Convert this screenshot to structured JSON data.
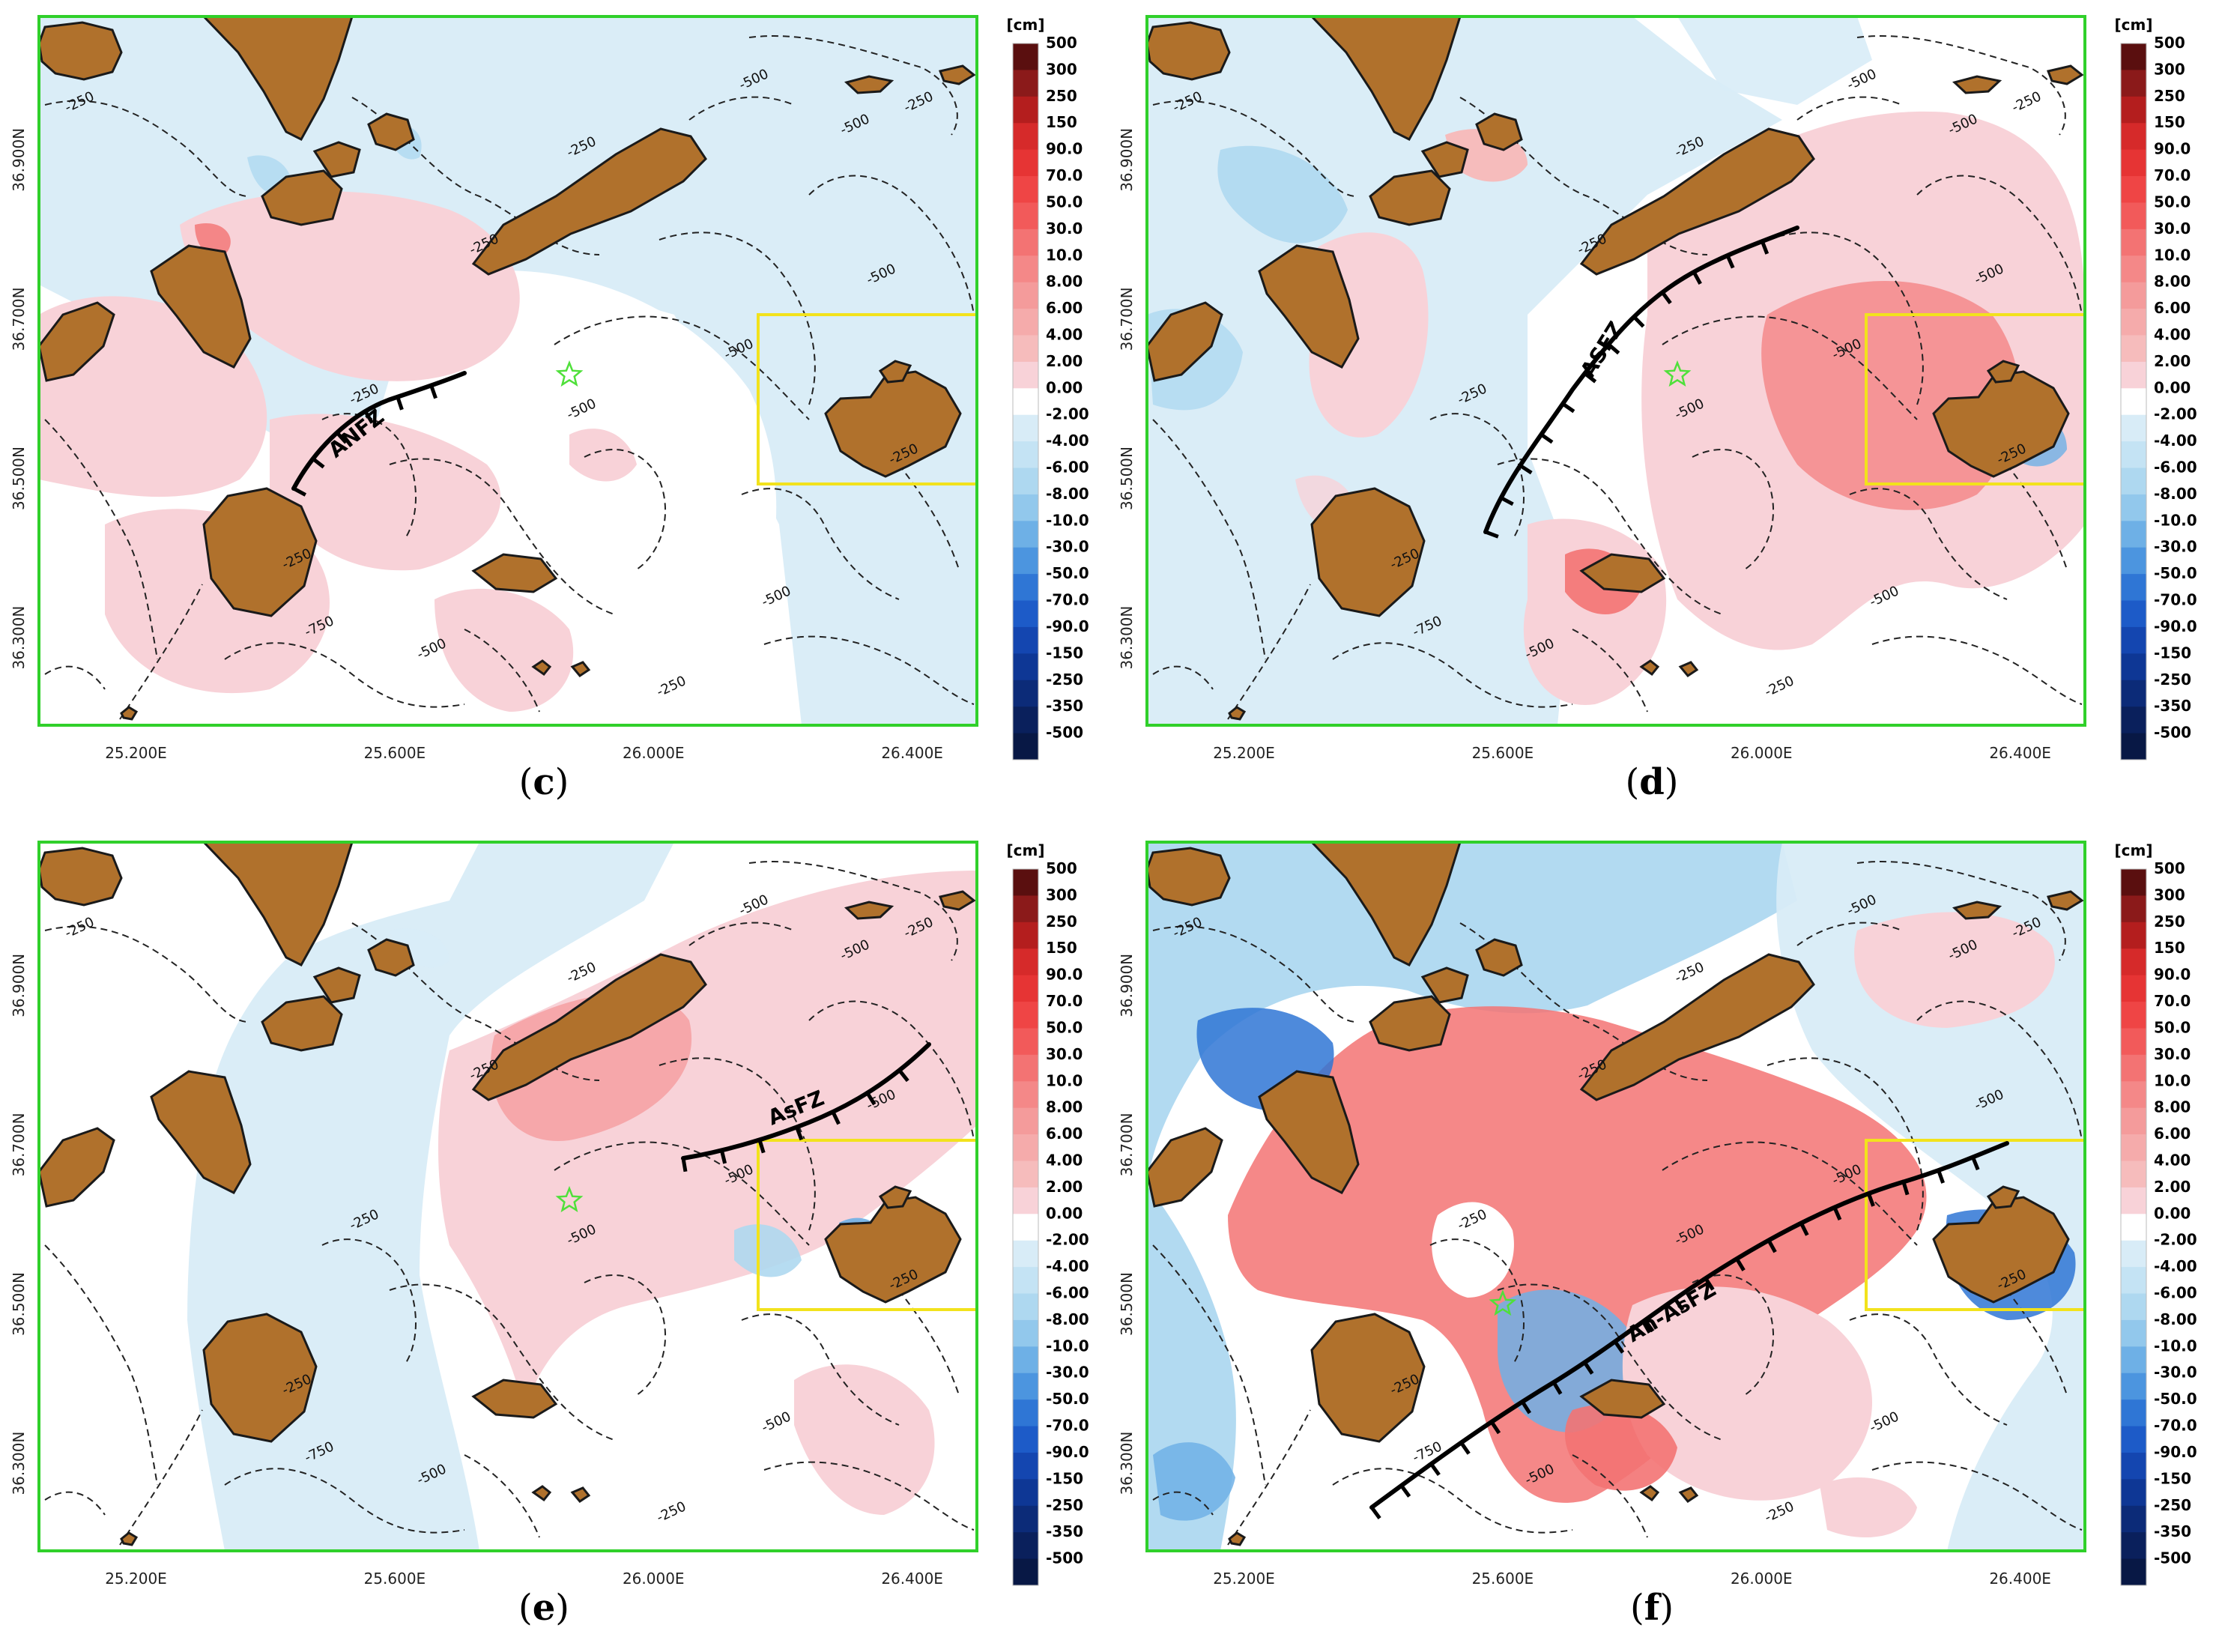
{
  "figure": {
    "colorbar": {
      "unit": "[cm]",
      "levels": [
        "500",
        "300",
        "250",
        "150",
        "90.0",
        "70.0",
        "50.0",
        "30.0",
        "10.0",
        "8.00",
        "6.00",
        "4.00",
        "2.00",
        "0.00",
        "-2.00",
        "-4.00",
        "-6.00",
        "-8.00",
        "-10.0",
        "-30.0",
        "-50.0",
        "-70.0",
        "-90.0",
        "-150",
        "-250",
        "-350",
        "-500"
      ],
      "colors": [
        "#5a0f0f",
        "#8b1a1a",
        "#b41e1e",
        "#d62a2a",
        "#e63434",
        "#ef4545",
        "#f25a5a",
        "#f37373",
        "#f48888",
        "#f49b9b",
        "#f5abab",
        "#f6bcbc",
        "#f8d2d8",
        "#ffffff",
        "#d8ecf7",
        "#c4e3f4",
        "#aed8f0",
        "#92c8ec",
        "#6eb0e6",
        "#4c95df",
        "#2f76d5",
        "#1d5bc8",
        "#1446b0",
        "#0e3795",
        "#0c2b78",
        "#0a205c",
        "#081845"
      ]
    },
    "axes": {
      "x_ticks": [
        "25.200E",
        "25.600E",
        "26.000E",
        "26.400E"
      ],
      "y_ticks": [
        "36.900N",
        "36.700N",
        "36.500N",
        "36.300N"
      ]
    },
    "contour_labels": [
      "-250",
      "-500",
      "-750"
    ],
    "panels": [
      {
        "id": "c",
        "letter": "c",
        "fault": "ANFZ",
        "epicenter_lon": 25.87,
        "epicenter_lat": 36.63
      },
      {
        "id": "d",
        "letter": "d",
        "fault": "ASFZ",
        "epicenter_lon": 25.87,
        "epicenter_lat": 36.63
      },
      {
        "id": "e",
        "letter": "e",
        "fault": "AsFZ",
        "epicenter_lon": 25.87,
        "epicenter_lat": 36.63
      },
      {
        "id": "f",
        "letter": "f",
        "fault": "An-AsFZ",
        "epicenter_lon": 25.6,
        "epicenter_lat": 36.5
      }
    ]
  }
}
